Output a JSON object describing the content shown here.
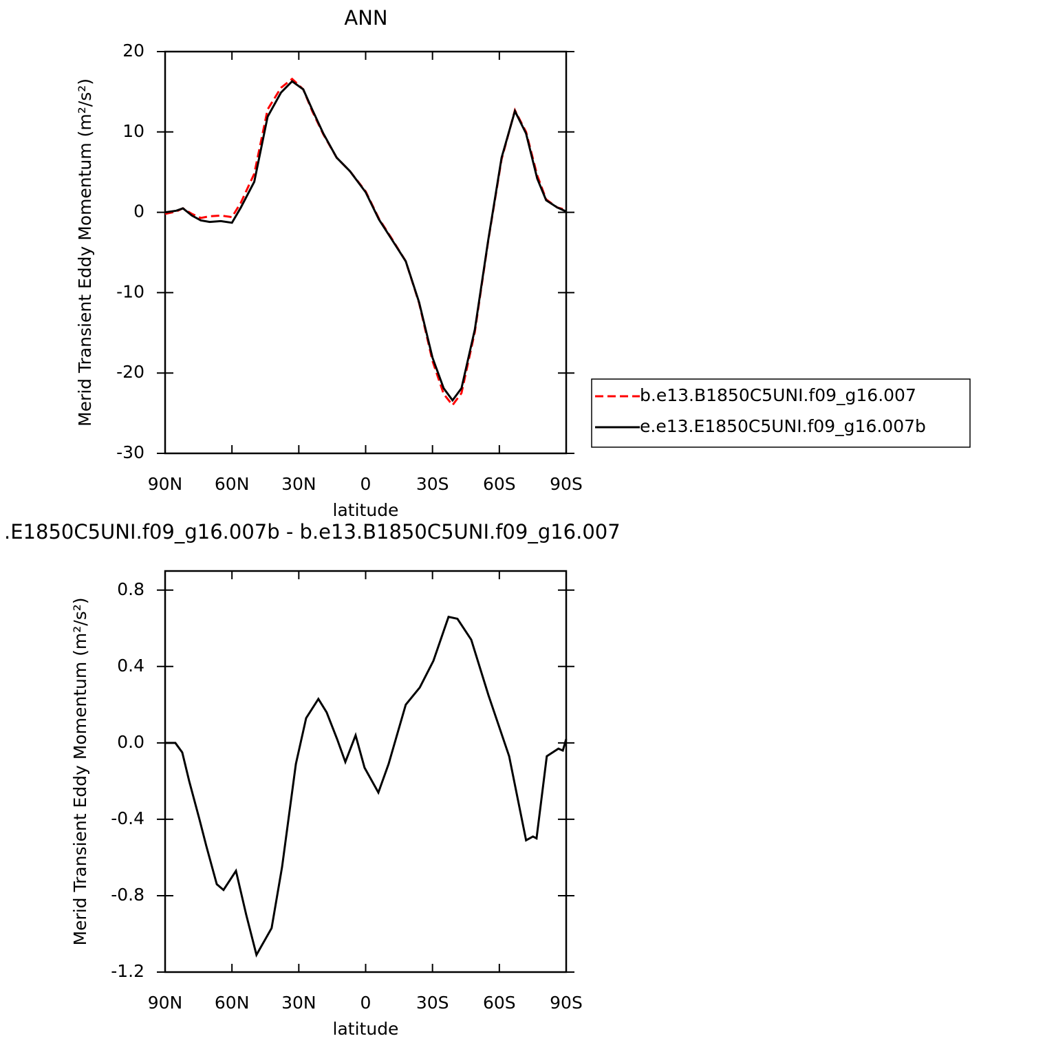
{
  "chart_data": [
    {
      "type": "line",
      "title": "ANN",
      "xlabel": "latitude",
      "ylabel": "Merid Transient Eddy Momentum (m²/s²)",
      "x": [
        90,
        85,
        82,
        78,
        74,
        70,
        65,
        60,
        56,
        50,
        44,
        38,
        33,
        28,
        24,
        19,
        13,
        7,
        0,
        -6,
        -12,
        -18,
        -24,
        -30,
        -35,
        -39,
        -43,
        -49,
        -55,
        -61,
        -67,
        -72,
        -77,
        -81,
        -86,
        -90
      ],
      "series": [
        {
          "name": "b.e13.B1850C5UNI.f09_g16.007",
          "color": "#ff0000",
          "dash": true,
          "values": [
            -0.2,
            0.1,
            0.5,
            -0.2,
            -0.7,
            -0.5,
            -0.4,
            -0.6,
            1.2,
            4.8,
            12.8,
            15.5,
            16.6,
            15.3,
            12.6,
            9.7,
            6.8,
            5.1,
            2.6,
            -0.8,
            -3.4,
            -6.1,
            -11.3,
            -18.5,
            -22.6,
            -24.0,
            -22.5,
            -14.9,
            -3.6,
            6.6,
            12.7,
            10.0,
            4.6,
            1.6,
            0.6,
            0.3
          ]
        },
        {
          "name": "e.e13.E1850C5UNI.f09_g16.007b",
          "color": "#000000",
          "dash": false,
          "values": [
            0,
            0.2,
            0.5,
            -0.4,
            -1.0,
            -1.2,
            -1.1,
            -1.3,
            0.6,
            3.8,
            11.9,
            14.9,
            16.3,
            15.3,
            12.8,
            9.8,
            6.8,
            5.1,
            2.5,
            -0.9,
            -3.5,
            -6.1,
            -11.2,
            -18.1,
            -21.9,
            -23.4,
            -21.9,
            -14.6,
            -3.5,
            6.8,
            12.6,
            9.8,
            4.2,
            1.5,
            0.6,
            0.1
          ]
        }
      ],
      "xlim": [
        90,
        -90
      ],
      "xticks": [
        {
          "value": 90,
          "label": "90N"
        },
        {
          "value": 60,
          "label": "60N"
        },
        {
          "value": 30,
          "label": "30N"
        },
        0,
        {
          "value": -30,
          "label": "30S"
        },
        {
          "value": -60,
          "label": "60S"
        },
        {
          "value": -90,
          "label": "90S"
        }
      ],
      "ylim": [
        -30,
        20
      ],
      "yticks": [
        -30,
        -20,
        -10,
        0,
        10,
        20
      ],
      "legend": "right"
    },
    {
      "type": "line",
      "title": ".E1850C5UNI.f09_g16.007b - b.e13.B1850C5UNI.f09_g16.007",
      "xlabel": "latitude",
      "ylabel": "Merid Transient Eddy Momentum (m²/s²)",
      "x": [
        90,
        85.4,
        82.3,
        79.2,
        74.6,
        71.5,
        66.8,
        63.8,
        58.2,
        53.6,
        49,
        42.2,
        37.5,
        31.3,
        26.7,
        21.2,
        17.5,
        12.8,
        9.1,
        4.5,
        0.5,
        -5.7,
        -10.3,
        -18,
        -24.3,
        -30.4,
        -37.2,
        -41.2,
        -47.4,
        -55.1,
        -64.4,
        -72,
        -75.1,
        -76.7,
        -81.3,
        -86.5,
        -88.5,
        -90
      ],
      "series": [
        {
          "color": "#000000",
          "dash": false,
          "values": [
            0,
            0,
            -0.05,
            -0.2,
            -0.4,
            -0.54,
            -0.74,
            -0.77,
            -0.67,
            -0.9,
            -1.11,
            -0.97,
            -0.65,
            -0.11,
            0.13,
            0.23,
            0.16,
            0.02,
            -0.1,
            0.04,
            -0.13,
            -0.26,
            -0.11,
            0.2,
            0.29,
            0.43,
            0.66,
            0.65,
            0.54,
            0.25,
            -0.07,
            -0.51,
            -0.49,
            -0.5,
            -0.07,
            -0.03,
            -0.04,
            0.02
          ]
        }
      ],
      "xlim": [
        90,
        -90
      ],
      "xticks": [
        {
          "value": 90,
          "label": "90N"
        },
        {
          "value": 60,
          "label": "60N"
        },
        {
          "value": 30,
          "label": "30N"
        },
        0,
        {
          "value": -30,
          "label": "30S"
        },
        {
          "value": -60,
          "label": "60S"
        },
        {
          "value": -90,
          "label": "90S"
        }
      ],
      "ylim": [
        -1.2,
        0.9
      ],
      "yticks": [
        -1.2,
        -0.8,
        -0.4,
        {
          "value": 0,
          "label": "0.0"
        },
        0.4,
        0.8
      ]
    }
  ]
}
